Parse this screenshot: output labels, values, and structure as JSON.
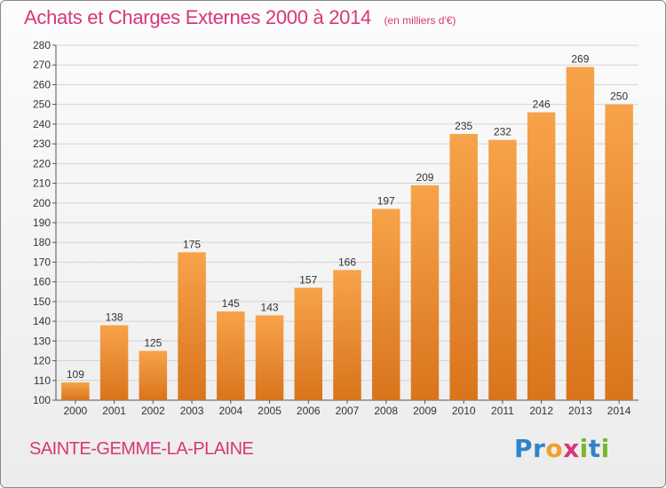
{
  "header": {
    "title": "Achats et Charges Externes 2000 à 2014",
    "subtitle": "(en milliers d'€)"
  },
  "footer": {
    "commune": "SAINTE-GEMME-LA-PLAINE",
    "logo_letters": [
      {
        "ch": "P",
        "color": "#2f84c8"
      },
      {
        "ch": "r",
        "color": "#2f84c8"
      },
      {
        "ch": "o",
        "color": "#f0a02c"
      },
      {
        "ch": "x",
        "color": "#d6377a"
      },
      {
        "ch": "i",
        "color": "#79b72a"
      },
      {
        "ch": "t",
        "color": "#2f84c8"
      },
      {
        "ch": "i",
        "color": "#79b72a"
      }
    ]
  },
  "colors": {
    "bar_light": "#f7a34a",
    "bar_dark": "#d9741c",
    "grid": "#d4d4d4",
    "text": "#333333",
    "accent": "#d6377a"
  },
  "chart_data": {
    "type": "bar",
    "categories": [
      "2000",
      "2001",
      "2002",
      "2003",
      "2004",
      "2005",
      "2006",
      "2007",
      "2008",
      "2009",
      "2010",
      "2011",
      "2012",
      "2013",
      "2014"
    ],
    "values": [
      109,
      138,
      125,
      175,
      145,
      143,
      157,
      166,
      197,
      209,
      235,
      232,
      246,
      269,
      250
    ],
    "ylim": [
      100,
      280
    ],
    "ytick_step": 10,
    "grid": true,
    "data_labels": true
  }
}
